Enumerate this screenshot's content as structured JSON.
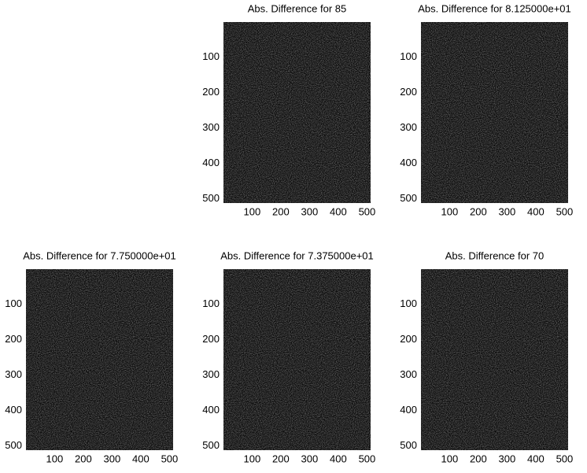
{
  "chart_data": [
    {
      "type": "image",
      "title": "Abs. Difference for 85",
      "xlim": [
        0.5,
        512.5
      ],
      "ylim": [
        0.5,
        512.5
      ],
      "ydir": "reverse",
      "xticks": [
        100,
        200,
        300,
        400,
        500
      ],
      "yticks": [
        100,
        200,
        300,
        400,
        500
      ]
    },
    {
      "type": "image",
      "title": "Abs. Difference for 8.125000e+01",
      "xlim": [
        0.5,
        512.5
      ],
      "ylim": [
        0.5,
        512.5
      ],
      "ydir": "reverse",
      "xticks": [
        100,
        200,
        300,
        400,
        500
      ],
      "yticks": [
        100,
        200,
        300,
        400,
        500
      ]
    },
    {
      "type": "image",
      "title": "Abs. Difference for 7.750000e+01",
      "xlim": [
        0.5,
        512.5
      ],
      "ylim": [
        0.5,
        512.5
      ],
      "ydir": "reverse",
      "xticks": [
        100,
        200,
        300,
        400,
        500
      ],
      "yticks": [
        100,
        200,
        300,
        400,
        500
      ]
    },
    {
      "type": "image",
      "title": "Abs. Difference for 7.375000e+01",
      "xlim": [
        0.5,
        512.5
      ],
      "ylim": [
        0.5,
        512.5
      ],
      "ydir": "reverse",
      "xticks": [
        100,
        200,
        300,
        400,
        500
      ],
      "yticks": [
        100,
        200,
        300,
        400,
        500
      ]
    },
    {
      "type": "image",
      "title": "Abs. Difference for 70",
      "xlim": [
        0.5,
        512.5
      ],
      "ylim": [
        0.5,
        512.5
      ],
      "ydir": "reverse",
      "xticks": [
        100,
        200,
        300,
        400,
        500
      ],
      "yticks": [
        100,
        200,
        300,
        400,
        500
      ]
    }
  ]
}
